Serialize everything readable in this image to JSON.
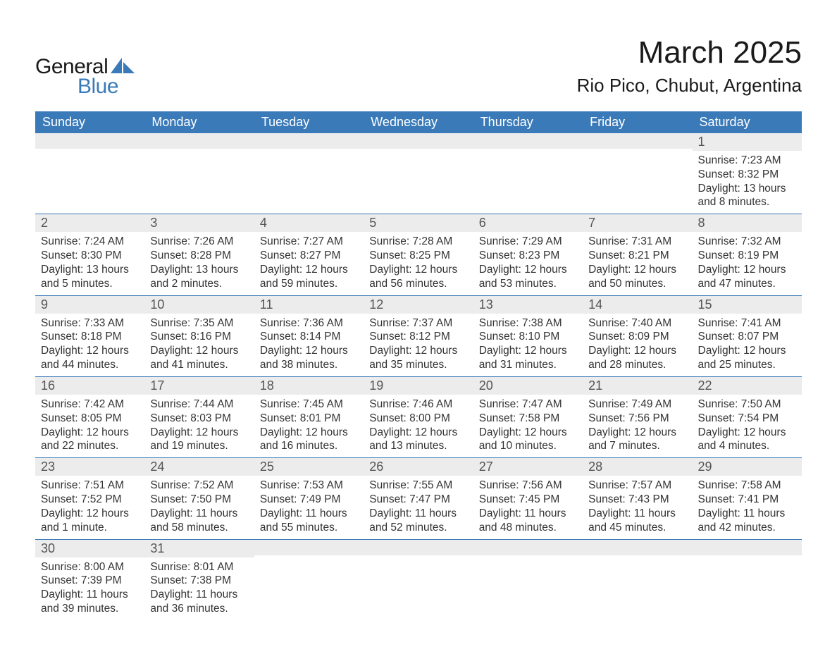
{
  "logo": {
    "text1": "General",
    "text2": "Blue",
    "color_dark": "#1a1a1a",
    "color_blue": "#3a7ab8"
  },
  "title": "March 2025",
  "location": "Rio Pico, Chubut, Argentina",
  "theme": {
    "header_bg": "#3a7ab8",
    "header_fg": "#ffffff",
    "daynum_bg": "#ececec",
    "daynum_fg": "#555555",
    "border_color": "#3a7ab8",
    "body_bg": "#ffffff",
    "text_color": "#333333",
    "title_fontsize": 44,
    "location_fontsize": 26,
    "dayheader_fontsize": 18,
    "cell_fontsize": 15.5
  },
  "weekdays": [
    "Sunday",
    "Monday",
    "Tuesday",
    "Wednesday",
    "Thursday",
    "Friday",
    "Saturday"
  ],
  "weeks": [
    [
      {
        "n": "",
        "lines": []
      },
      {
        "n": "",
        "lines": []
      },
      {
        "n": "",
        "lines": []
      },
      {
        "n": "",
        "lines": []
      },
      {
        "n": "",
        "lines": []
      },
      {
        "n": "",
        "lines": []
      },
      {
        "n": "1",
        "lines": [
          "Sunrise: 7:23 AM",
          "Sunset: 8:32 PM",
          "Daylight: 13 hours and 8 minutes."
        ]
      }
    ],
    [
      {
        "n": "2",
        "lines": [
          "Sunrise: 7:24 AM",
          "Sunset: 8:30 PM",
          "Daylight: 13 hours and 5 minutes."
        ]
      },
      {
        "n": "3",
        "lines": [
          "Sunrise: 7:26 AM",
          "Sunset: 8:28 PM",
          "Daylight: 13 hours and 2 minutes."
        ]
      },
      {
        "n": "4",
        "lines": [
          "Sunrise: 7:27 AM",
          "Sunset: 8:27 PM",
          "Daylight: 12 hours and 59 minutes."
        ]
      },
      {
        "n": "5",
        "lines": [
          "Sunrise: 7:28 AM",
          "Sunset: 8:25 PM",
          "Daylight: 12 hours and 56 minutes."
        ]
      },
      {
        "n": "6",
        "lines": [
          "Sunrise: 7:29 AM",
          "Sunset: 8:23 PM",
          "Daylight: 12 hours and 53 minutes."
        ]
      },
      {
        "n": "7",
        "lines": [
          "Sunrise: 7:31 AM",
          "Sunset: 8:21 PM",
          "Daylight: 12 hours and 50 minutes."
        ]
      },
      {
        "n": "8",
        "lines": [
          "Sunrise: 7:32 AM",
          "Sunset: 8:19 PM",
          "Daylight: 12 hours and 47 minutes."
        ]
      }
    ],
    [
      {
        "n": "9",
        "lines": [
          "Sunrise: 7:33 AM",
          "Sunset: 8:18 PM",
          "Daylight: 12 hours and 44 minutes."
        ]
      },
      {
        "n": "10",
        "lines": [
          "Sunrise: 7:35 AM",
          "Sunset: 8:16 PM",
          "Daylight: 12 hours and 41 minutes."
        ]
      },
      {
        "n": "11",
        "lines": [
          "Sunrise: 7:36 AM",
          "Sunset: 8:14 PM",
          "Daylight: 12 hours and 38 minutes."
        ]
      },
      {
        "n": "12",
        "lines": [
          "Sunrise: 7:37 AM",
          "Sunset: 8:12 PM",
          "Daylight: 12 hours and 35 minutes."
        ]
      },
      {
        "n": "13",
        "lines": [
          "Sunrise: 7:38 AM",
          "Sunset: 8:10 PM",
          "Daylight: 12 hours and 31 minutes."
        ]
      },
      {
        "n": "14",
        "lines": [
          "Sunrise: 7:40 AM",
          "Sunset: 8:09 PM",
          "Daylight: 12 hours and 28 minutes."
        ]
      },
      {
        "n": "15",
        "lines": [
          "Sunrise: 7:41 AM",
          "Sunset: 8:07 PM",
          "Daylight: 12 hours and 25 minutes."
        ]
      }
    ],
    [
      {
        "n": "16",
        "lines": [
          "Sunrise: 7:42 AM",
          "Sunset: 8:05 PM",
          "Daylight: 12 hours and 22 minutes."
        ]
      },
      {
        "n": "17",
        "lines": [
          "Sunrise: 7:44 AM",
          "Sunset: 8:03 PM",
          "Daylight: 12 hours and 19 minutes."
        ]
      },
      {
        "n": "18",
        "lines": [
          "Sunrise: 7:45 AM",
          "Sunset: 8:01 PM",
          "Daylight: 12 hours and 16 minutes."
        ]
      },
      {
        "n": "19",
        "lines": [
          "Sunrise: 7:46 AM",
          "Sunset: 8:00 PM",
          "Daylight: 12 hours and 13 minutes."
        ]
      },
      {
        "n": "20",
        "lines": [
          "Sunrise: 7:47 AM",
          "Sunset: 7:58 PM",
          "Daylight: 12 hours and 10 minutes."
        ]
      },
      {
        "n": "21",
        "lines": [
          "Sunrise: 7:49 AM",
          "Sunset: 7:56 PM",
          "Daylight: 12 hours and 7 minutes."
        ]
      },
      {
        "n": "22",
        "lines": [
          "Sunrise: 7:50 AM",
          "Sunset: 7:54 PM",
          "Daylight: 12 hours and 4 minutes."
        ]
      }
    ],
    [
      {
        "n": "23",
        "lines": [
          "Sunrise: 7:51 AM",
          "Sunset: 7:52 PM",
          "Daylight: 12 hours and 1 minute."
        ]
      },
      {
        "n": "24",
        "lines": [
          "Sunrise: 7:52 AM",
          "Sunset: 7:50 PM",
          "Daylight: 11 hours and 58 minutes."
        ]
      },
      {
        "n": "25",
        "lines": [
          "Sunrise: 7:53 AM",
          "Sunset: 7:49 PM",
          "Daylight: 11 hours and 55 minutes."
        ]
      },
      {
        "n": "26",
        "lines": [
          "Sunrise: 7:55 AM",
          "Sunset: 7:47 PM",
          "Daylight: 11 hours and 52 minutes."
        ]
      },
      {
        "n": "27",
        "lines": [
          "Sunrise: 7:56 AM",
          "Sunset: 7:45 PM",
          "Daylight: 11 hours and 48 minutes."
        ]
      },
      {
        "n": "28",
        "lines": [
          "Sunrise: 7:57 AM",
          "Sunset: 7:43 PM",
          "Daylight: 11 hours and 45 minutes."
        ]
      },
      {
        "n": "29",
        "lines": [
          "Sunrise: 7:58 AM",
          "Sunset: 7:41 PM",
          "Daylight: 11 hours and 42 minutes."
        ]
      }
    ],
    [
      {
        "n": "30",
        "lines": [
          "Sunrise: 8:00 AM",
          "Sunset: 7:39 PM",
          "Daylight: 11 hours and 39 minutes."
        ]
      },
      {
        "n": "31",
        "lines": [
          "Sunrise: 8:01 AM",
          "Sunset: 7:38 PM",
          "Daylight: 11 hours and 36 minutes."
        ]
      },
      {
        "n": "",
        "lines": []
      },
      {
        "n": "",
        "lines": []
      },
      {
        "n": "",
        "lines": []
      },
      {
        "n": "",
        "lines": []
      },
      {
        "n": "",
        "lines": []
      }
    ]
  ]
}
